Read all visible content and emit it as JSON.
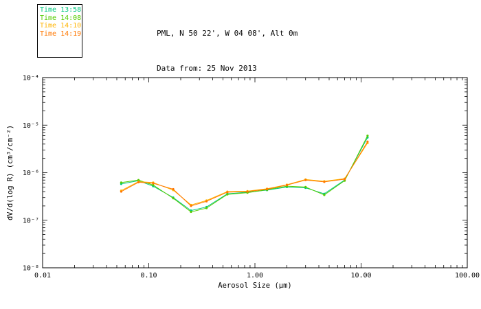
{
  "header": {
    "title_line1": "PML, N 50 22', W 04 08', Alt 0m",
    "title_line2": "Data from: 25 Nov 2013"
  },
  "legend": {
    "items": [
      {
        "label": "Time 13:58",
        "color": "#00c87d"
      },
      {
        "label": "Time 14:08",
        "color": "#55cc00"
      },
      {
        "label": "Time 14:10",
        "color": "#ffb400"
      },
      {
        "label": "Time 14:19",
        "color": "#ff7700"
      }
    ]
  },
  "chart_data": {
    "type": "line",
    "x_scale": "log",
    "y_scale": "log",
    "title": "PML, N 50 22', W 04 08', Alt 0m",
    "subtitle": "Data from: 25 Nov 2013",
    "xlabel": "Aerosol Size (μm)",
    "ylabel": "dV/d(log R) (cm³/cm⁻²)",
    "xlim": [
      0.01,
      100
    ],
    "ylim": [
      1e-08,
      0.0001
    ],
    "grid": false,
    "legend_position": "top-left",
    "x_ticks": [
      0.01,
      0.1,
      1,
      10,
      100
    ],
    "x_tick_labels": [
      "0.01",
      "0.10",
      "1.00",
      "10.00",
      "100.00"
    ],
    "y_ticks": [
      1e-08,
      1e-07,
      1e-06,
      1e-05,
      0.0001
    ],
    "y_tick_labels": [
      "10⁻⁸",
      "10⁻⁷",
      "10⁻⁶",
      "10⁻⁵",
      "10⁻⁴"
    ],
    "x": [
      0.055,
      0.08,
      0.11,
      0.17,
      0.25,
      0.35,
      0.55,
      0.85,
      1.3,
      2.0,
      3.0,
      4.5,
      7.0,
      11.5
    ],
    "series": [
      {
        "name": "Time 13:58",
        "color": "#00c87d",
        "values": [
          5.8e-07,
          6.8e-07,
          5.2e-07,
          3e-07,
          1.6e-07,
          1.9e-07,
          3.6e-07,
          3.9e-07,
          4.3e-07,
          5e-07,
          4.8e-07,
          3.6e-07,
          7e-07,
          5.5e-06
        ]
      },
      {
        "name": "Time 14:08",
        "color": "#55cc00",
        "values": [
          6.2e-07,
          7e-07,
          5.5e-07,
          2.9e-07,
          1.5e-07,
          1.8e-07,
          3.5e-07,
          3.8e-07,
          4.4e-07,
          5.2e-07,
          5e-07,
          3.4e-07,
          6.8e-07,
          6e-06
        ]
      },
      {
        "name": "Time 14:10",
        "color": "#ffb400",
        "values": [
          4.2e-07,
          6.5e-07,
          6.2e-07,
          4.3e-07,
          2.1e-07,
          2.6e-07,
          4e-07,
          4.1e-07,
          4.6e-07,
          5.6e-07,
          7.2e-07,
          6.6e-07,
          7.5e-07,
          4.2e-06
        ]
      },
      {
        "name": "Time 14:19",
        "color": "#ff7700",
        "values": [
          4e-07,
          6.3e-07,
          6e-07,
          4.5e-07,
          2e-07,
          2.5e-07,
          3.9e-07,
          4e-07,
          4.5e-07,
          5.5e-07,
          7e-07,
          6.4e-07,
          7.3e-07,
          4.5e-06
        ]
      }
    ]
  }
}
